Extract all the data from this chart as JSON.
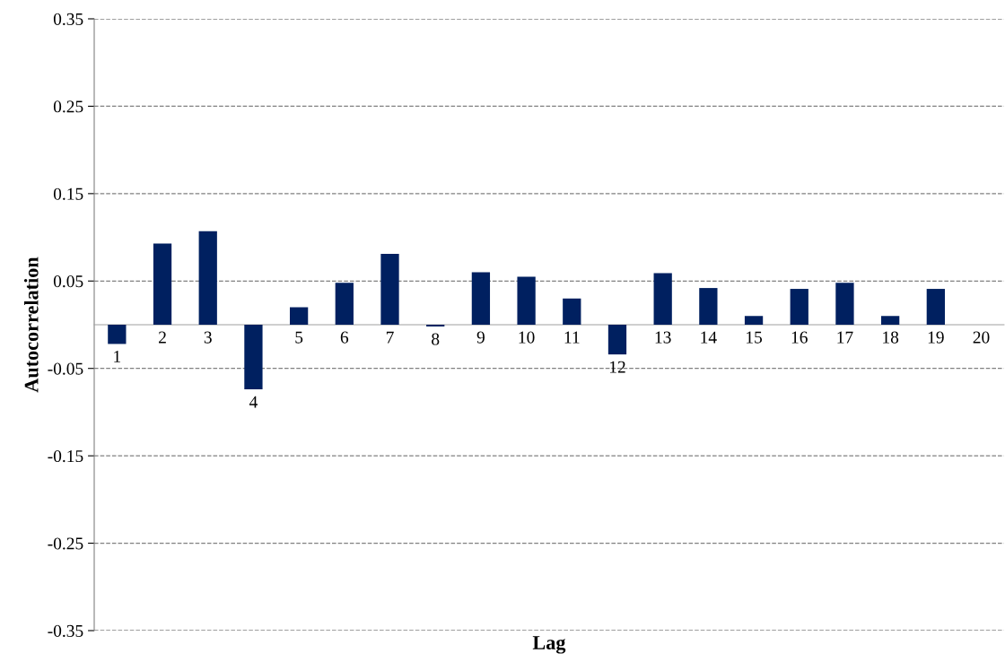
{
  "chart_data": {
    "type": "bar",
    "xlabel": "Lag",
    "ylabel": "Autocorrelation",
    "categories": [
      "1",
      "2",
      "3",
      "4",
      "5",
      "6",
      "7",
      "8",
      "9",
      "10",
      "11",
      "12",
      "13",
      "14",
      "15",
      "16",
      "17",
      "18",
      "19",
      "20"
    ],
    "values": [
      -0.022,
      0.093,
      0.107,
      -0.074,
      0.02,
      0.048,
      0.081,
      -0.002,
      0.06,
      0.055,
      0.03,
      -0.034,
      0.059,
      0.042,
      0.01,
      0.041,
      0.048,
      0.01,
      0.041,
      0
    ],
    "color": "#002060",
    "ylim": [
      -0.35,
      0.35
    ],
    "yticks": [
      -0.35,
      -0.25,
      -0.15,
      -0.05,
      0.05,
      0.15,
      0.25,
      0.35
    ],
    "grid": "y"
  }
}
